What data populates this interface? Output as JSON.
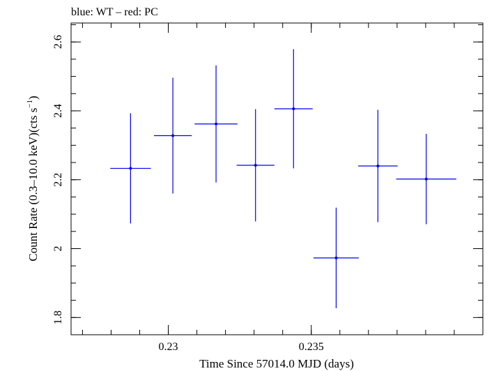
{
  "chart_data": {
    "type": "scatter",
    "title": "blue: WT – red: PC",
    "xlabel": "Time Since 57014.0 MJD (days)",
    "ylabel_parts": {
      "main": "Count Rate (0.3–10.0 keV)(cts s",
      "sup": "−1",
      "close": ")"
    },
    "xlim": [
      0.2266,
      0.241
    ],
    "ylim": [
      1.75,
      2.655
    ],
    "x_major_ticks": [
      0.23,
      0.235
    ],
    "x_tick_labels": [
      "0.23",
      "0.235"
    ],
    "x_minor_step": 0.001,
    "y_major_ticks": [
      1.8,
      2.0,
      2.2,
      2.4,
      2.6
    ],
    "y_tick_labels": [
      "1.8",
      "2",
      "2.2",
      "2.4",
      "2.6"
    ],
    "y_minor_step": 0.05,
    "grid": false,
    "series": [
      {
        "color": "#0000ee",
        "points": [
          {
            "x": 0.22868,
            "xerr": 0.00071,
            "y": 2.233,
            "yerr": 0.16
          },
          {
            "x": 0.23016,
            "xerr": 0.00066,
            "y": 2.328,
            "yerr": 0.168
          },
          {
            "x": 0.23167,
            "xerr": 0.00075,
            "y": 2.362,
            "yerr": 0.17
          },
          {
            "x": 0.23305,
            "xerr": 0.00066,
            "y": 2.242,
            "yerr": 0.163
          },
          {
            "x": 0.23438,
            "xerr": 0.00067,
            "y": 2.406,
            "yerr": 0.173
          },
          {
            "x": 0.23587,
            "xerr": 0.00079,
            "y": 1.973,
            "yerr": 0.146
          },
          {
            "x": 0.23733,
            "xerr": 0.00069,
            "y": 2.24,
            "yerr": 0.163
          },
          {
            "x": 0.23902,
            "xerr": 0.00105,
            "y": 2.202,
            "yerr": 0.131
          }
        ]
      }
    ]
  }
}
